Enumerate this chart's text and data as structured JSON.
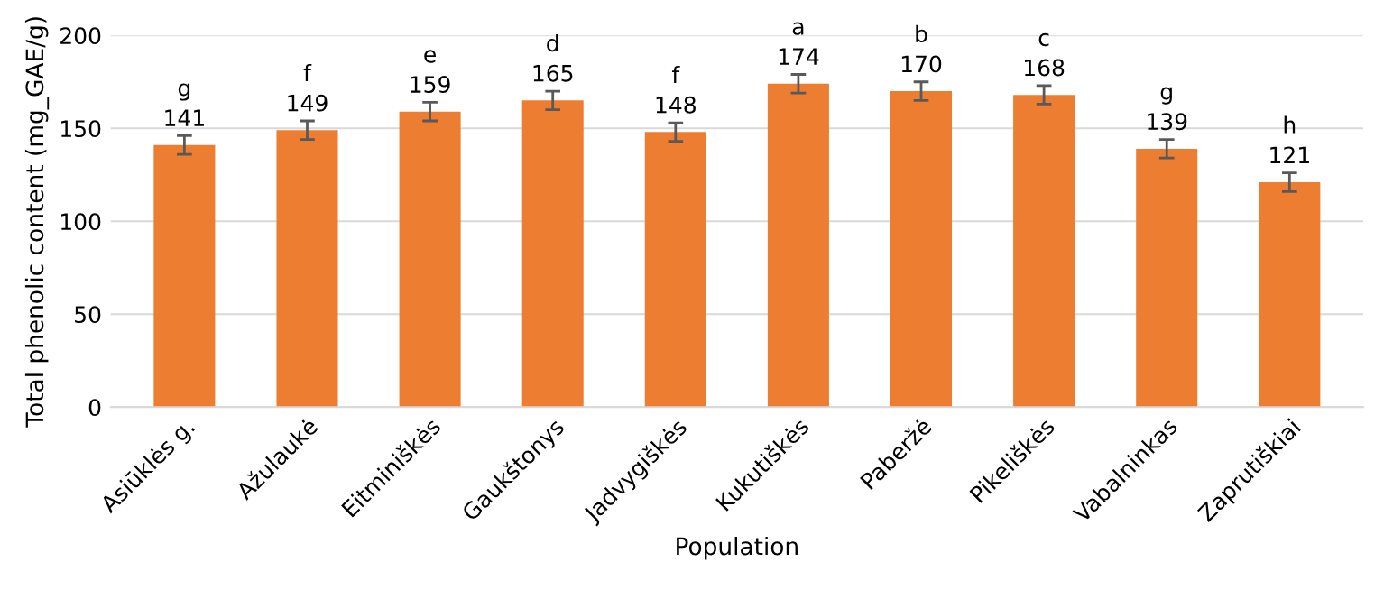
{
  "chart_data": {
    "type": "bar",
    "xlabel": "Population",
    "ylabel": "Total phenolic content (mg_GAE/g)",
    "categories": [
      "Asiūklės g.",
      "Ažulaukė",
      "Eitminiškės",
      "Gaukštonys",
      "Jadvygiškės",
      "Kukutiškės",
      "Paberžė",
      "Pikeliškės",
      "Vabalninkas",
      "Zaprutiškiai"
    ],
    "values": [
      141,
      149,
      159,
      165,
      148,
      174,
      170,
      168,
      139,
      121
    ],
    "errors": [
      5,
      5,
      5,
      5,
      5,
      5,
      5,
      5,
      5,
      5
    ],
    "color": "#ed7d31",
    "data_labels": true,
    "annotations": [
      {
        "text": "g",
        "x": "Asiūklės g.",
        "y": 141
      },
      {
        "text": "f",
        "x": "Ažulaukė",
        "y": 149
      },
      {
        "text": "e",
        "x": "Eitminiškės",
        "y": 159
      },
      {
        "text": "d",
        "x": "Gaukštonys",
        "y": 165
      },
      {
        "text": "f",
        "x": "Jadvygiškės",
        "y": 148
      },
      {
        "text": "a",
        "x": "Kukutiškės",
        "y": 174
      },
      {
        "text": "b",
        "x": "Paberžė",
        "y": 170
      },
      {
        "text": "c",
        "x": "Pikeliškės",
        "y": 168
      },
      {
        "text": "g",
        "x": "Vabalninkas",
        "y": 139
      },
      {
        "text": "h",
        "x": "Zaprutiškiai",
        "y": 121
      }
    ],
    "ylim": [
      0,
      200
    ],
    "yticks": [
      0,
      50,
      100,
      150,
      200
    ],
    "grid": "y"
  }
}
